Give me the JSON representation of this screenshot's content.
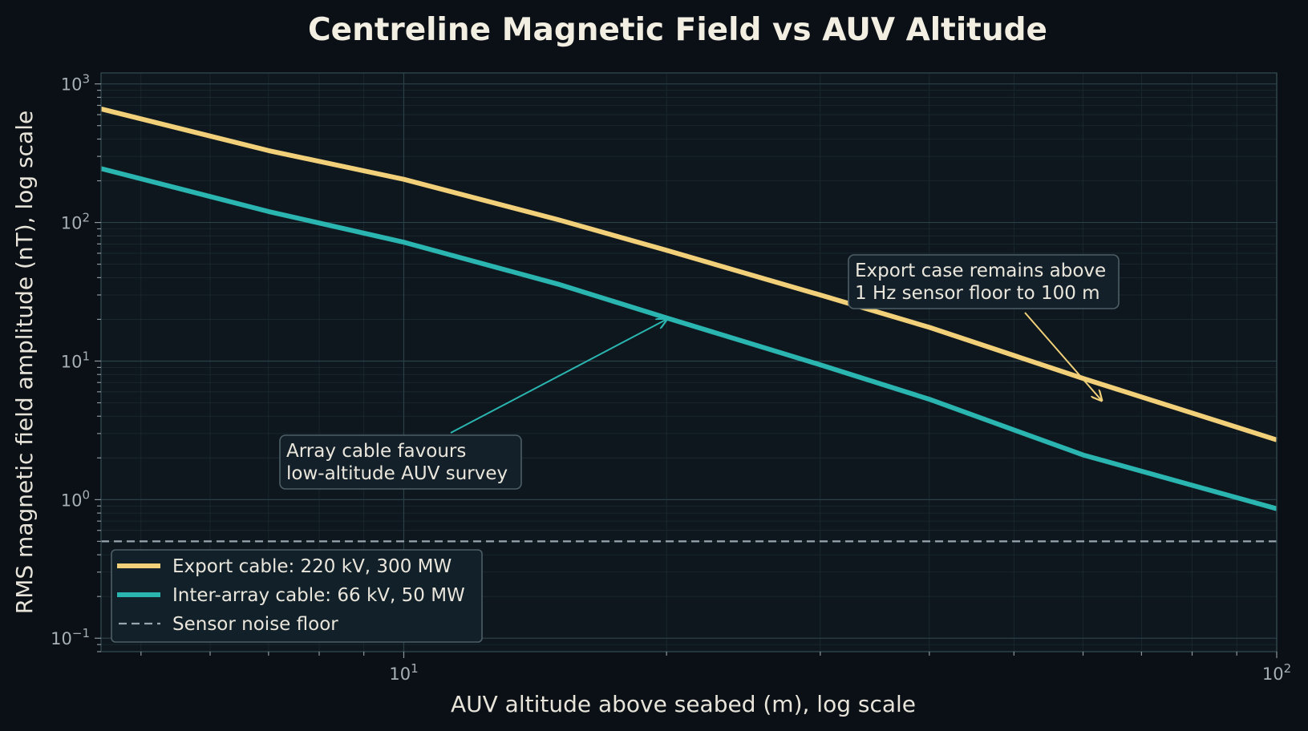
{
  "chart_data": {
    "type": "line",
    "title": "Centreline Magnetic Field vs AUV Altitude",
    "xlabel": "AUV altitude above seabed (m), log scale",
    "ylabel": "RMS magnetic field amplitude (nT), log scale",
    "x_scale": "log",
    "y_scale": "log",
    "xlim": [
      4.5,
      100
    ],
    "ylim": [
      0.08,
      1200
    ],
    "grid": true,
    "legend_position": "lower-left",
    "x_ticks": [
      {
        "value": 10,
        "base": "10",
        "exp": "1"
      },
      {
        "value": 100,
        "base": "10",
        "exp": "2"
      }
    ],
    "y_ticks": [
      {
        "value": 1000,
        "base": "10",
        "exp": "3"
      },
      {
        "value": 100,
        "base": "10",
        "exp": "2"
      },
      {
        "value": 10,
        "base": "10",
        "exp": "1"
      },
      {
        "value": 1,
        "base": "10",
        "exp": "0"
      },
      {
        "value": 0.1,
        "base": "10",
        "exp": "−1"
      }
    ],
    "series": [
      {
        "name": "Export cable: 220 kV, 300 MW",
        "color": "#f2d07a",
        "style": "solid",
        "x": [
          4.5,
          7,
          10,
          15,
          20,
          30,
          40,
          60,
          100
        ],
        "y": [
          660,
          330,
          205,
          105,
          63,
          30,
          17.5,
          7.5,
          2.7
        ]
      },
      {
        "name": "Inter-array cable: 66 kV, 50 MW",
        "color": "#2ab5b0",
        "style": "solid",
        "x": [
          4.5,
          7,
          10,
          15,
          20,
          30,
          40,
          60,
          100
        ],
        "y": [
          245,
          120,
          72,
          36,
          20.5,
          9.4,
          5.3,
          2.1,
          0.86
        ]
      },
      {
        "name": "Sensor noise floor",
        "color": "#9aa6ae",
        "style": "dashed",
        "x": [
          4.5,
          100
        ],
        "y": [
          0.5,
          0.5
        ]
      }
    ],
    "annotations": [
      {
        "lines": [
          "Export case remains above",
          "1 Hz sensor floor to 100 m"
        ],
        "target": [
          63,
          5.2
        ],
        "color": "#f2d07a"
      },
      {
        "lines": [
          "Array cable favours",
          "low-altitude AUV survey"
        ],
        "target": [
          20,
          20
        ],
        "color": "#2ab5b0"
      }
    ]
  }
}
